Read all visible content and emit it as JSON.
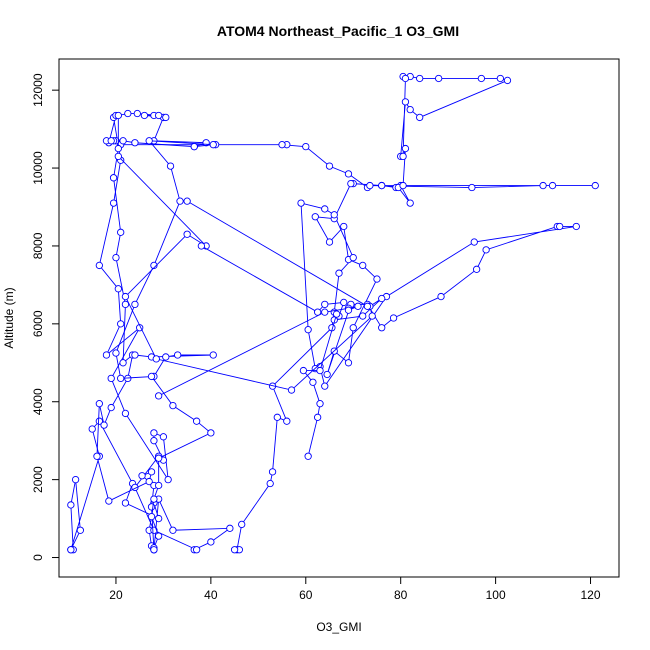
{
  "chart_data": {
    "type": "line",
    "title": "ATOM4 Northeast_Pacific_1 O3_GMI",
    "xlabel": "O3_GMI",
    "ylabel": "Altitude (m)",
    "xlim": [
      8,
      126
    ],
    "ylim": [
      -500,
      12800
    ],
    "x_ticks": [
      20,
      40,
      60,
      80,
      100,
      120
    ],
    "y_ticks": [
      0,
      2000,
      4000,
      6000,
      8000,
      10000,
      12000
    ],
    "grid": false,
    "legend": "none",
    "series_color": "#0000ff",
    "marker": "open-circle",
    "series": [
      {
        "points": [
          [
            10.5,
            200
          ],
          [
            11,
            200
          ],
          [
            10.5,
            1350
          ],
          [
            11.5,
            2000
          ],
          [
            12.5,
            700
          ],
          [
            10.5,
            200
          ],
          [
            16.5,
            2600
          ],
          [
            15,
            3300
          ],
          [
            16.5,
            3500
          ],
          [
            23.5,
            1900
          ],
          [
            22,
            1400
          ],
          [
            29,
            1000
          ],
          [
            28,
            1400
          ],
          [
            27,
            700
          ],
          [
            27.5,
            300
          ],
          [
            28,
            200
          ],
          [
            29,
            1500
          ],
          [
            32,
            700
          ],
          [
            44,
            750
          ],
          [
            40,
            400
          ],
          [
            36.5,
            200
          ],
          [
            37,
            200
          ],
          [
            28,
            700
          ],
          [
            24,
            1800
          ],
          [
            29,
            2600
          ],
          [
            30,
            2500
          ],
          [
            28,
            3000
          ],
          [
            28,
            3200
          ],
          [
            30,
            3100
          ],
          [
            31,
            2000
          ],
          [
            22,
            3700
          ],
          [
            19,
            4600
          ],
          [
            25,
            5900
          ],
          [
            18,
            5200
          ],
          [
            21,
            6000
          ],
          [
            20.5,
            6900
          ],
          [
            16.5,
            7500
          ],
          [
            19.5,
            9100
          ],
          [
            21,
            10200
          ],
          [
            19.5,
            11300
          ],
          [
            20,
            11350
          ],
          [
            18.5,
            10650
          ],
          [
            18,
            10700
          ],
          [
            20,
            10700
          ],
          [
            19.5,
            10700
          ],
          [
            19,
            10700
          ],
          [
            21,
            10600
          ],
          [
            41,
            10600
          ],
          [
            56,
            10600
          ],
          [
            55,
            10600
          ],
          [
            60,
            10550
          ],
          [
            65,
            10050
          ],
          [
            69,
            9850
          ],
          [
            73,
            9500
          ],
          [
            73.5,
            9550
          ],
          [
            95,
            9500
          ],
          [
            110,
            9550
          ],
          [
            112,
            9550
          ],
          [
            121,
            9550
          ],
          [
            76,
            9550
          ],
          [
            79,
            9500
          ],
          [
            80,
            9550
          ],
          [
            82,
            9100
          ],
          [
            79.5,
            9500
          ],
          [
            76,
            9550
          ],
          [
            70,
            9600
          ],
          [
            69.5,
            9600
          ],
          [
            66,
            8700
          ],
          [
            62,
            8750
          ],
          [
            65,
            8100
          ],
          [
            68,
            8500
          ],
          [
            69,
            7650
          ],
          [
            72,
            7500
          ],
          [
            75,
            7150
          ],
          [
            70,
            5900
          ],
          [
            69,
            5000
          ],
          [
            66,
            5300
          ],
          [
            64.5,
            4700
          ],
          [
            69.5,
            6500
          ],
          [
            73,
            6500
          ],
          [
            76,
            5900
          ],
          [
            78.5,
            6150
          ],
          [
            88.5,
            6700
          ],
          [
            96,
            7400
          ],
          [
            98,
            7900
          ],
          [
            113,
            8500
          ],
          [
            113.5,
            8500
          ],
          [
            117,
            8500
          ],
          [
            95.5,
            8100
          ],
          [
            77,
            6700
          ],
          [
            64,
            4400
          ],
          [
            63,
            4900
          ],
          [
            62,
            4850
          ],
          [
            60.5,
            5850
          ],
          [
            59,
            9100
          ],
          [
            64,
            8950
          ],
          [
            66,
            8800
          ],
          [
            70,
            7700
          ],
          [
            67,
            7300
          ],
          [
            66,
            6300
          ],
          [
            65.5,
            5900
          ],
          [
            53,
            4400
          ],
          [
            56,
            3500
          ],
          [
            54,
            3600
          ],
          [
            53,
            2200
          ],
          [
            52.5,
            1900
          ],
          [
            46.5,
            850
          ],
          [
            45.5,
            200
          ],
          [
            46,
            200
          ],
          [
            45,
            200
          ]
        ]
      },
      {
        "points": [
          [
            21.5,
            10700
          ],
          [
            24,
            10650
          ],
          [
            36.5,
            10550
          ],
          [
            39,
            10650
          ],
          [
            28,
            10700
          ],
          [
            30,
            11300
          ],
          [
            30.5,
            11300
          ],
          [
            26,
            11350
          ],
          [
            28,
            11350
          ],
          [
            29,
            11350
          ],
          [
            24.5,
            11400
          ],
          [
            22.5,
            11400
          ],
          [
            20.5,
            11350
          ],
          [
            20.5,
            10500
          ],
          [
            19.5,
            9750
          ]
        ]
      },
      {
        "points": [
          [
            19.5,
            9750
          ],
          [
            21,
            8350
          ],
          [
            20,
            7700
          ],
          [
            22,
            6500
          ],
          [
            21.5,
            5000
          ],
          [
            23.5,
            5200
          ],
          [
            22.5,
            4600
          ],
          [
            19,
            3850
          ],
          [
            17.5,
            3400
          ],
          [
            16.5,
            3950
          ],
          [
            16,
            2600
          ],
          [
            18.5,
            1450
          ],
          [
            27,
            1950
          ],
          [
            27.5,
            2200
          ],
          [
            25.5,
            2100
          ],
          [
            28,
            1850
          ],
          [
            27.5,
            1300
          ],
          [
            28,
            200
          ]
        ]
      },
      {
        "points": [
          [
            36.5,
            10550
          ],
          [
            40.5,
            10600
          ],
          [
            27,
            10700
          ],
          [
            31.5,
            10050
          ],
          [
            33.5,
            9150
          ],
          [
            28,
            7500
          ],
          [
            24,
            6500
          ],
          [
            20,
            5250
          ],
          [
            21,
            4600
          ],
          [
            28,
            4650
          ],
          [
            30.5,
            5150
          ],
          [
            33,
            5200
          ],
          [
            40.5,
            5200
          ],
          [
            27.5,
            5150
          ],
          [
            24,
            5200
          ]
        ]
      },
      {
        "points": [
          [
            27.5,
            4650
          ],
          [
            32,
            3900
          ],
          [
            37,
            3500
          ],
          [
            40,
            3200
          ],
          [
            29,
            2550
          ],
          [
            29,
            1850
          ],
          [
            28,
            1500
          ],
          [
            27.5,
            1050
          ],
          [
            29,
            550
          ],
          [
            28,
            250
          ],
          [
            28,
            200
          ]
        ]
      },
      {
        "points": [
          [
            20.5,
            10300
          ],
          [
            39,
            8000
          ],
          [
            35,
            8300
          ],
          [
            22,
            6700
          ],
          [
            28.5,
            5100
          ],
          [
            57,
            4300
          ],
          [
            74,
            6200
          ],
          [
            73.5,
            6450
          ],
          [
            76,
            6650
          ],
          [
            72,
            6200
          ],
          [
            66,
            6100
          ]
        ]
      },
      {
        "points": [
          [
            38,
            8000
          ],
          [
            62.5,
            6300
          ],
          [
            64,
            6500
          ],
          [
            68,
            6550
          ],
          [
            67,
            6200
          ],
          [
            66.5,
            6250
          ],
          [
            63,
            4800
          ],
          [
            59.5,
            4800
          ],
          [
            61.5,
            4500
          ],
          [
            63,
            3950
          ],
          [
            62.5,
            3600
          ],
          [
            60.5,
            2600
          ]
        ]
      },
      {
        "points": [
          [
            29,
            4150
          ],
          [
            64,
            6300
          ],
          [
            69,
            6400
          ],
          [
            71,
            6450
          ],
          [
            69,
            6350
          ]
        ]
      },
      {
        "points": [
          [
            35,
            9150
          ],
          [
            73,
            6450
          ]
        ]
      },
      {
        "points": [
          [
            80,
            10300
          ],
          [
            81,
            11700
          ],
          [
            82,
            11500
          ],
          [
            84,
            11300
          ],
          [
            102.5,
            12250
          ],
          [
            101,
            12300
          ],
          [
            97,
            12300
          ],
          [
            88,
            12300
          ],
          [
            84,
            12300
          ],
          [
            82,
            12350
          ],
          [
            80.5,
            12350
          ],
          [
            81,
            12300
          ],
          [
            80.5,
            10300
          ],
          [
            81,
            10500
          ],
          [
            80.5,
            9550
          ]
        ]
      }
    ]
  }
}
